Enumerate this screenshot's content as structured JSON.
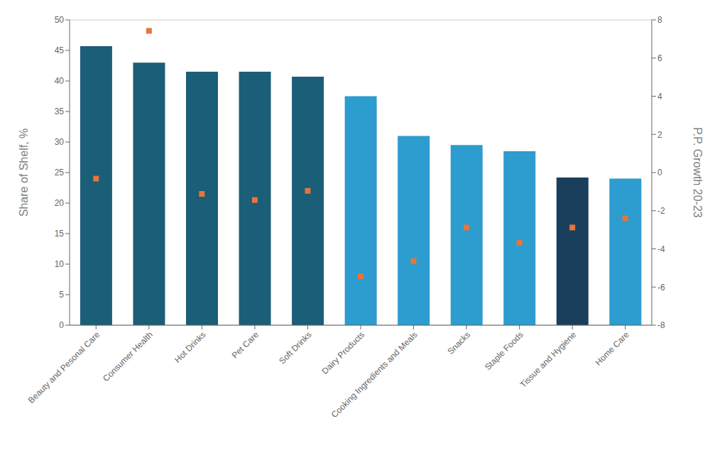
{
  "chart_data": {
    "type": "bar",
    "categories": [
      "Beauty and Pesonal Care",
      "Consumer Health",
      "Hot Drinks",
      "Pet Care",
      "Soft Drinks",
      "Dairy Products",
      "Cooking Ingredients and Meals",
      "Snacks",
      "Staple Foods",
      "Tissue and Hygiene",
      "Home Care"
    ],
    "ylabel": "Share of Shelf, %",
    "y2label": "P.P. Growth 20-23",
    "ylim": [
      0,
      50
    ],
    "yticks": [
      0,
      5,
      10,
      15,
      20,
      25,
      30,
      35,
      40,
      45,
      50
    ],
    "y2lim": [
      -8,
      8
    ],
    "y2ticks": [
      -8,
      -6,
      -4,
      -2,
      0,
      2,
      4,
      6,
      8
    ],
    "grid": true,
    "series": [
      {
        "type": "bar",
        "colors": [
          "#1a5e78",
          "#1a5e78",
          "#1a5e78",
          "#1a5e78",
          "#1a5e78",
          "#2d9cce",
          "#2d9cce",
          "#2d9cce",
          "#2d9cce",
          "#1a3f5c",
          "#2d9cce"
        ],
        "values": [
          45.7,
          43.0,
          41.5,
          41.5,
          40.7,
          37.5,
          31.0,
          29.5,
          28.5,
          24.2,
          24.0
        ]
      },
      {
        "type": "scatter",
        "marker": "square",
        "color": "#e8743b",
        "values": [
          24.0,
          48.2,
          21.5,
          20.5,
          22.0,
          8.0,
          10.5,
          16.0,
          13.5,
          16.0,
          17.5
        ]
      }
    ]
  }
}
